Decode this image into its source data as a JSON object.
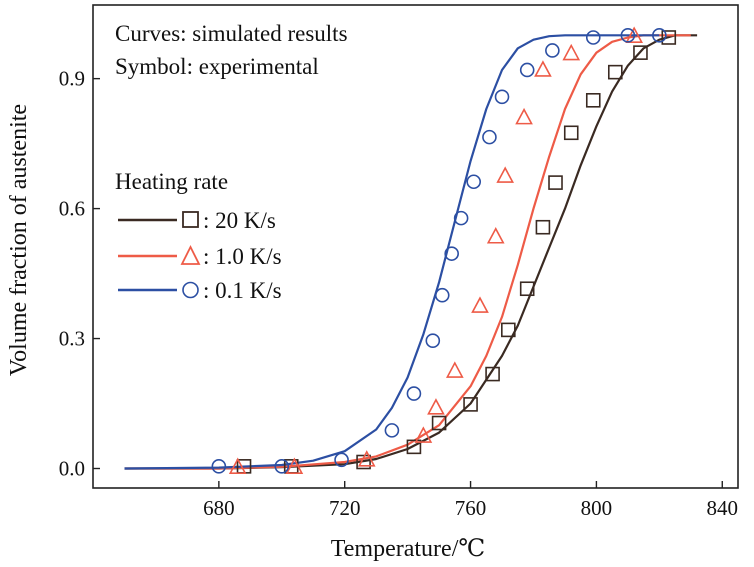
{
  "chart_data": {
    "type": "scatter",
    "title": "",
    "xlabel": "Temperature/℃",
    "ylabel": "Volume fraction of austenite",
    "xlim": [
      640,
      845
    ],
    "ylim": [
      -0.045,
      1.07
    ],
    "xticks": [
      680,
      720,
      760,
      800,
      840
    ],
    "yticks": [
      0.0,
      0.3,
      0.6,
      0.9
    ],
    "xtick_labels": [
      "680",
      "720",
      "760",
      "800",
      "840"
    ],
    "ytick_labels": [
      "0.0",
      "0.3",
      "0.6",
      "0.9"
    ],
    "annotations": [
      "Curves: simulated results",
      "Symbol: experimental"
    ],
    "legend": {
      "title": "Heating rate",
      "position": "middle-left",
      "entries": [
        ": 20 K/s",
        ": 1.0 K/s",
        ": 0.1 K/s"
      ]
    },
    "series": [
      {
        "name": "20 K/s",
        "color": "#3a2a22",
        "marker": "square",
        "simulated": {
          "x": [
            650,
            680,
            700,
            720,
            730,
            740,
            750,
            760,
            770,
            775,
            780,
            785,
            790,
            795,
            800,
            805,
            810,
            815,
            820,
            825,
            830,
            832
          ],
          "y": [
            0.0,
            0.0,
            0.003,
            0.01,
            0.022,
            0.045,
            0.083,
            0.15,
            0.26,
            0.33,
            0.42,
            0.51,
            0.6,
            0.7,
            0.79,
            0.87,
            0.93,
            0.97,
            0.99,
            1.0,
            1.0,
            1.0
          ]
        },
        "experimental": {
          "x": [
            688,
            703,
            726,
            742,
            750,
            760,
            767,
            772,
            778,
            783,
            787,
            792,
            799,
            806,
            814,
            823
          ],
          "y": [
            0.005,
            0.005,
            0.015,
            0.05,
            0.105,
            0.148,
            0.218,
            0.32,
            0.415,
            0.557,
            0.66,
            0.775,
            0.85,
            0.915,
            0.96,
            0.995
          ]
        }
      },
      {
        "name": "1.0 K/s",
        "color": "#ee5b47",
        "marker": "triangle",
        "simulated": {
          "x": [
            650,
            680,
            700,
            720,
            730,
            740,
            750,
            760,
            765,
            770,
            775,
            780,
            785,
            790,
            795,
            800,
            805,
            810,
            815,
            820,
            830
          ],
          "y": [
            0.0,
            0.0,
            0.004,
            0.015,
            0.028,
            0.055,
            0.1,
            0.19,
            0.26,
            0.35,
            0.47,
            0.6,
            0.72,
            0.83,
            0.91,
            0.96,
            0.985,
            0.995,
            1.0,
            1.0,
            1.0
          ]
        },
        "experimental": {
          "x": [
            686,
            704,
            727,
            745,
            749,
            755,
            763,
            768,
            771,
            777,
            783,
            792,
            812
          ],
          "y": [
            0.003,
            0.003,
            0.02,
            0.075,
            0.14,
            0.225,
            0.375,
            0.535,
            0.675,
            0.81,
            0.92,
            0.958,
            0.998
          ]
        }
      },
      {
        "name": "0.1 K/s",
        "color": "#2c4fa3",
        "marker": "circle",
        "simulated": {
          "x": [
            650,
            680,
            700,
            710,
            720,
            730,
            735,
            740,
            745,
            750,
            755,
            760,
            765,
            770,
            775,
            780,
            785,
            790,
            800,
            810,
            820
          ],
          "y": [
            0.0,
            0.002,
            0.008,
            0.018,
            0.04,
            0.09,
            0.14,
            0.21,
            0.31,
            0.43,
            0.57,
            0.71,
            0.83,
            0.92,
            0.97,
            0.99,
            0.998,
            1.0,
            1.0,
            1.0,
            1.0
          ]
        },
        "experimental": {
          "x": [
            680,
            700,
            719,
            735,
            742,
            748,
            751,
            754,
            757,
            761,
            766,
            770,
            778,
            786,
            799,
            810,
            820
          ],
          "y": [
            0.005,
            0.005,
            0.02,
            0.088,
            0.173,
            0.295,
            0.4,
            0.496,
            0.578,
            0.662,
            0.765,
            0.858,
            0.92,
            0.965,
            0.995,
            1.0,
            1.0
          ]
        }
      }
    ]
  }
}
